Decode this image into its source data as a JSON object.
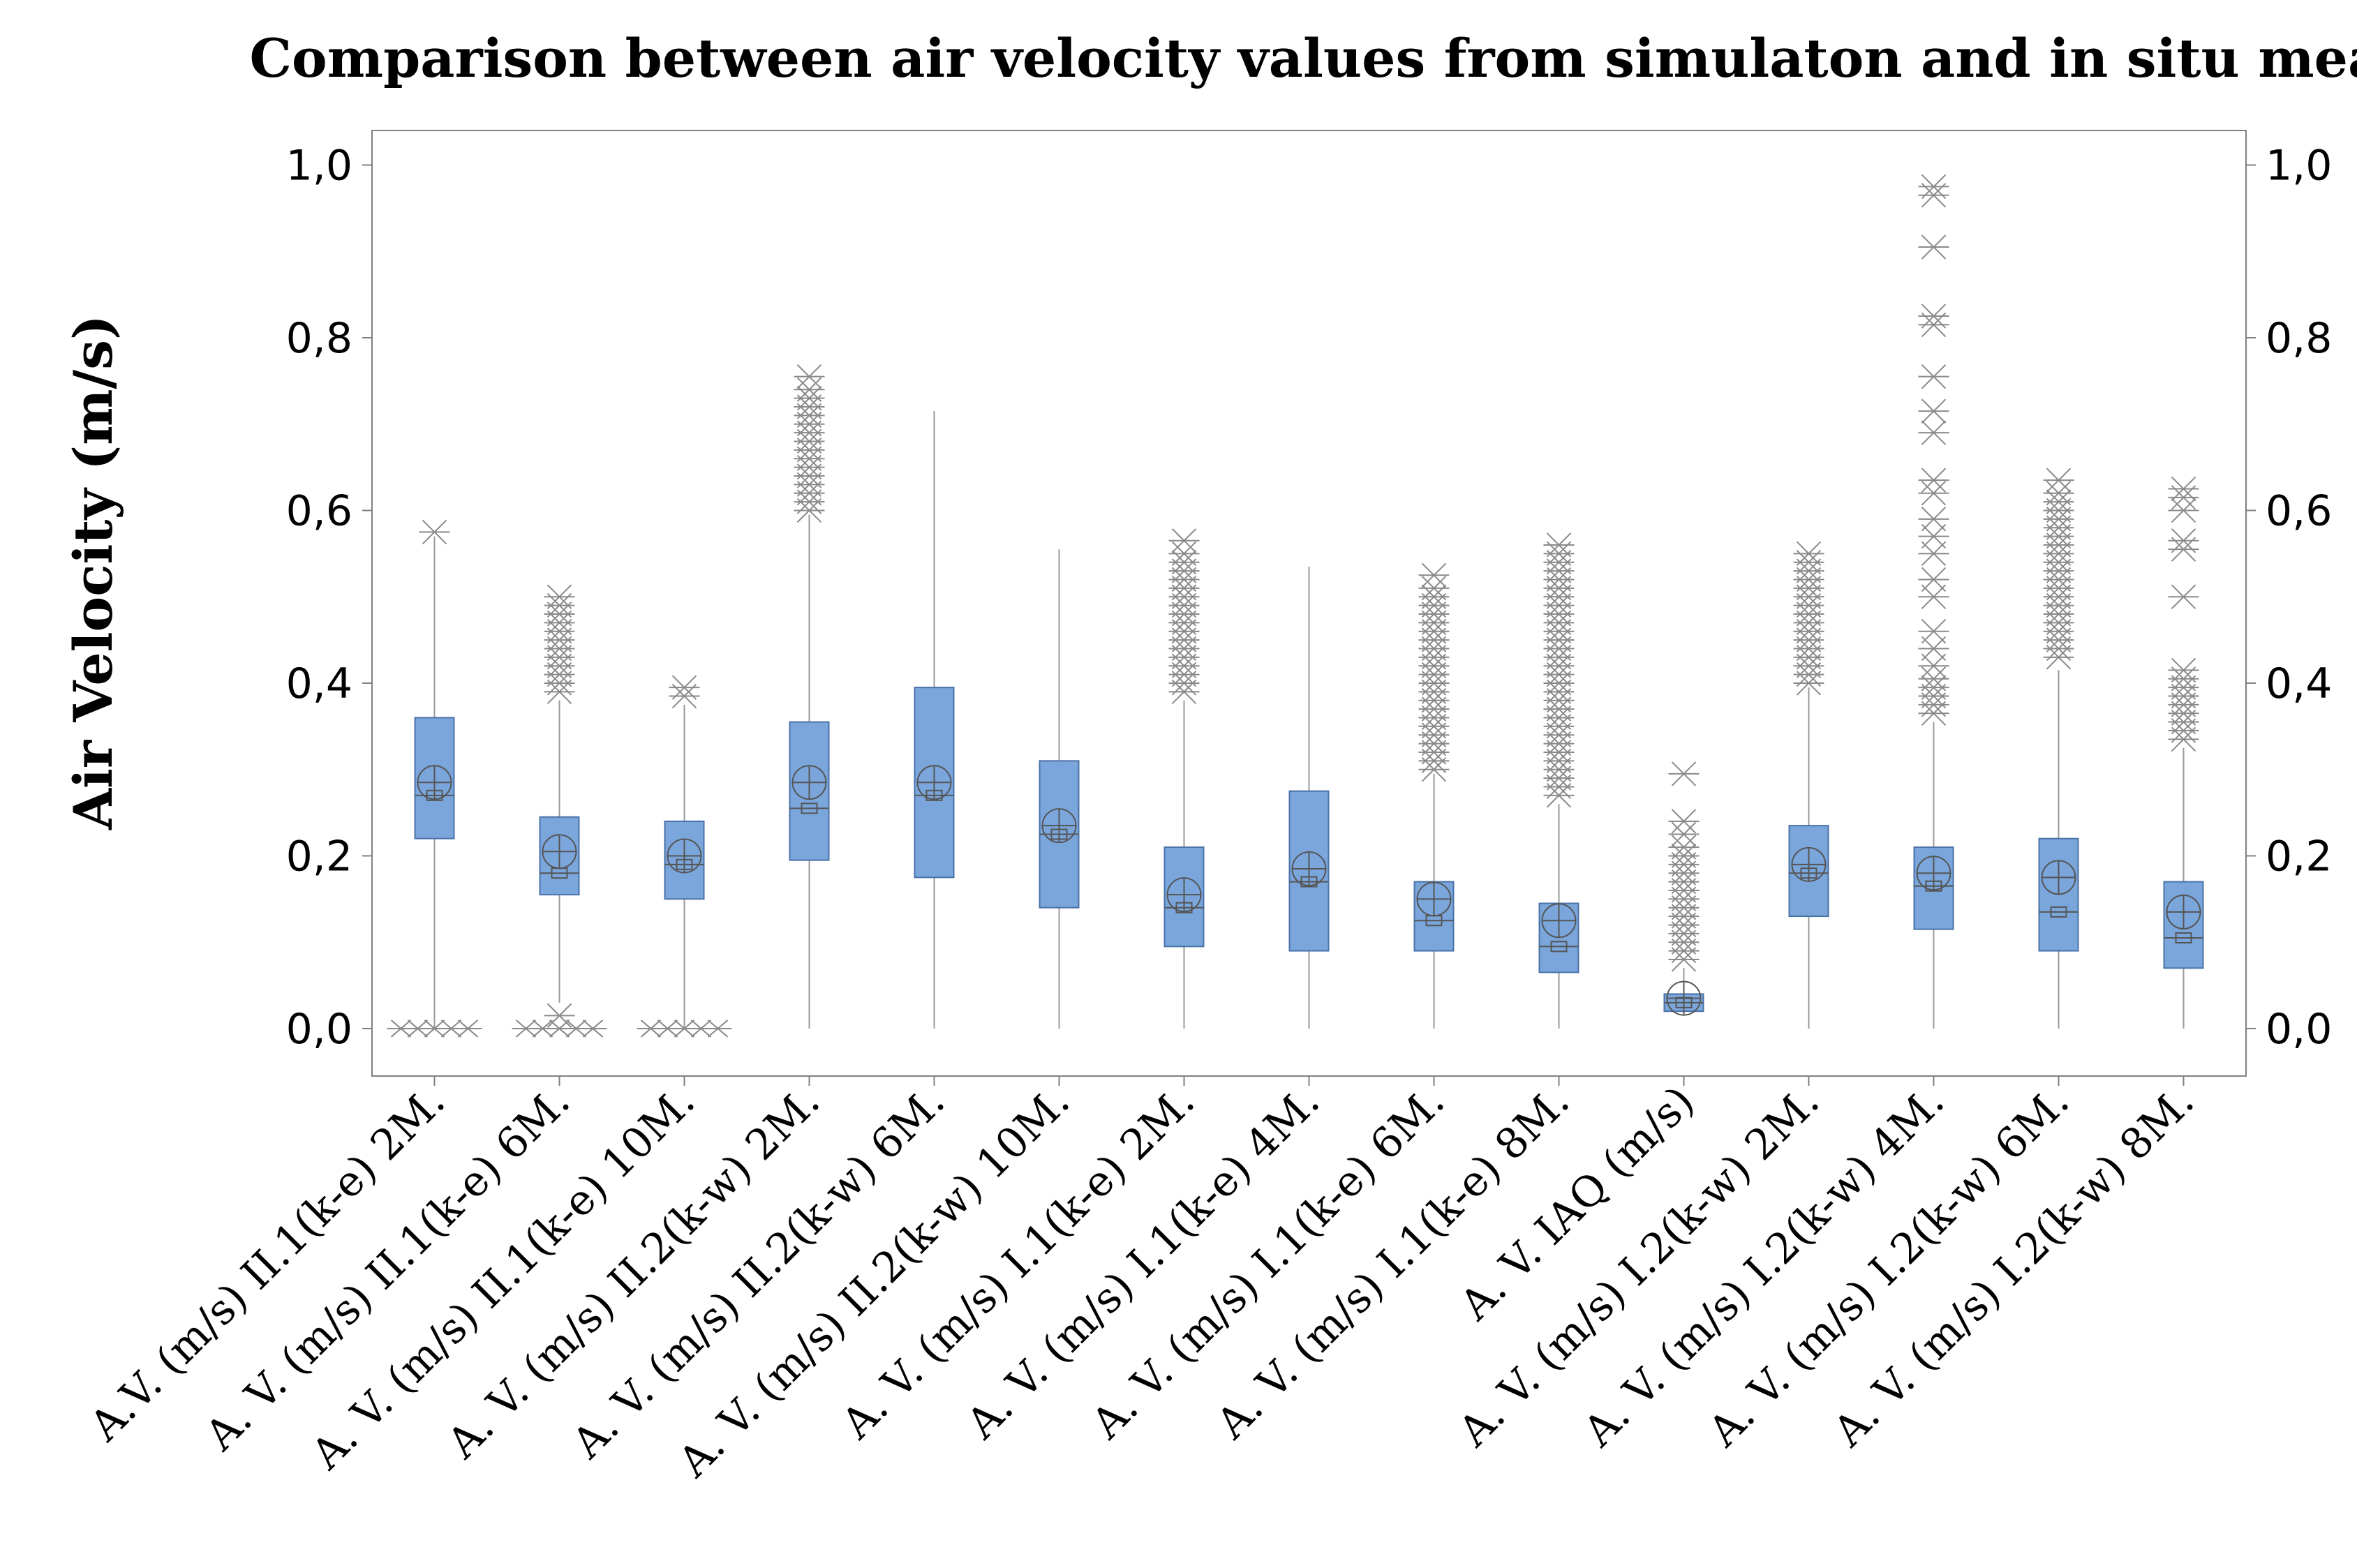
{
  "chart_data": {
    "type": "box",
    "title": "Comparison between air velocity values from simulaton and in situ measures",
    "ylabel": "Air Velocity  (m/s)",
    "xlabel": "",
    "ylim": [
      -0.055,
      1.04
    ],
    "yticks": [
      0.0,
      0.2,
      0.4,
      0.6,
      0.8,
      1.0
    ],
    "ytick_labels": [
      "0,0",
      "0,2",
      "0,4",
      "0,6",
      "0,8",
      "1,0"
    ],
    "grid": false,
    "colors": {
      "box_fill": "#7aa6dc",
      "box_stroke": "#4a72a8",
      "line": "#9a9a9a",
      "outlier": "#8a8a8a",
      "frame": "#808080"
    },
    "categories": [
      "A.V. (m/s) II.1(k-e) 2M.",
      "A. V. (m/s) II.1(k-e) 6M.",
      "A. V. (m/s) II.1(k-e) 10M.",
      "A. V. (m/s) II.2(k-w) 2M.",
      "A. V. (m/s) II.2(k-w) 6M.",
      "A. V. (m/s) II.2(k-w) 10M.",
      "A. V. (m/s) I.1(k-e) 2M.",
      "A. V. (m/s) I.1(k-e) 4M.",
      "A. V. (m/s) I.1(k-e) 6M.",
      "A. V. (m/s) I.1(k-e) 8M.",
      "A. V. IAQ (m/s)",
      "A. V. (m/s) I.2(k-w) 2M.",
      "A. V. (m/s) I.2(k-w) 4M.",
      "A. V. (m/s) I.2(k-w) 6M.",
      "A. V. (m/s) I.2(k-w) 8M."
    ],
    "boxes": [
      {
        "q1": 0.22,
        "median": 0.27,
        "q3": 0.36,
        "mean": 0.285,
        "whisker_low": 0.0,
        "whisker_high": 0.57,
        "outliers": [
          0.575,
          0.0
        ]
      },
      {
        "q1": 0.155,
        "median": 0.18,
        "q3": 0.245,
        "mean": 0.205,
        "whisker_low": 0.03,
        "whisker_high": 0.38,
        "outliers": [
          0.39,
          0.4,
          0.41,
          0.42,
          0.43,
          0.44,
          0.45,
          0.46,
          0.47,
          0.48,
          0.49,
          0.5,
          0.015,
          0.0
        ]
      },
      {
        "q1": 0.15,
        "median": 0.19,
        "q3": 0.24,
        "mean": 0.2,
        "whisker_low": 0.0,
        "whisker_high": 0.375,
        "outliers": [
          0.385,
          0.395,
          0.0
        ]
      },
      {
        "q1": 0.195,
        "median": 0.255,
        "q3": 0.355,
        "mean": 0.285,
        "whisker_low": 0.0,
        "whisker_high": 0.595,
        "outliers": [
          0.6,
          0.61,
          0.62,
          0.63,
          0.64,
          0.65,
          0.66,
          0.67,
          0.68,
          0.69,
          0.7,
          0.71,
          0.72,
          0.73,
          0.74,
          0.755
        ]
      },
      {
        "q1": 0.175,
        "median": 0.27,
        "q3": 0.395,
        "mean": 0.285,
        "whisker_low": 0.0,
        "whisker_high": 0.715,
        "outliers": []
      },
      {
        "q1": 0.14,
        "median": 0.225,
        "q3": 0.31,
        "mean": 0.235,
        "whisker_low": 0.0,
        "whisker_high": 0.555,
        "outliers": []
      },
      {
        "q1": 0.095,
        "median": 0.14,
        "q3": 0.21,
        "mean": 0.155,
        "whisker_low": 0.0,
        "whisker_high": 0.38,
        "outliers": [
          0.39,
          0.4,
          0.41,
          0.42,
          0.43,
          0.44,
          0.45,
          0.46,
          0.47,
          0.48,
          0.49,
          0.5,
          0.51,
          0.52,
          0.53,
          0.54,
          0.55,
          0.565
        ]
      },
      {
        "q1": 0.09,
        "median": 0.17,
        "q3": 0.275,
        "mean": 0.185,
        "whisker_low": 0.0,
        "whisker_high": 0.535,
        "outliers": []
      },
      {
        "q1": 0.09,
        "median": 0.125,
        "q3": 0.17,
        "mean": 0.15,
        "whisker_low": 0.0,
        "whisker_high": 0.295,
        "outliers": [
          0.3,
          0.31,
          0.32,
          0.33,
          0.34,
          0.35,
          0.36,
          0.37,
          0.38,
          0.39,
          0.4,
          0.41,
          0.42,
          0.43,
          0.44,
          0.45,
          0.46,
          0.47,
          0.48,
          0.49,
          0.5,
          0.51,
          0.525
        ]
      },
      {
        "q1": 0.065,
        "median": 0.095,
        "q3": 0.145,
        "mean": 0.125,
        "whisker_low": 0.0,
        "whisker_high": 0.26,
        "outliers": [
          0.27,
          0.28,
          0.29,
          0.3,
          0.31,
          0.32,
          0.33,
          0.34,
          0.35,
          0.36,
          0.37,
          0.38,
          0.39,
          0.4,
          0.41,
          0.42,
          0.43,
          0.44,
          0.45,
          0.46,
          0.47,
          0.48,
          0.49,
          0.5,
          0.51,
          0.52,
          0.53,
          0.54,
          0.55,
          0.56
        ]
      },
      {
        "q1": 0.02,
        "median": 0.03,
        "q3": 0.04,
        "mean": 0.035,
        "whisker_low": 0.02,
        "whisker_high": 0.07,
        "outliers": [
          0.08,
          0.09,
          0.1,
          0.11,
          0.12,
          0.13,
          0.14,
          0.15,
          0.16,
          0.17,
          0.18,
          0.19,
          0.2,
          0.21,
          0.225,
          0.24,
          0.295
        ]
      },
      {
        "q1": 0.13,
        "median": 0.18,
        "q3": 0.235,
        "mean": 0.19,
        "whisker_low": 0.0,
        "whisker_high": 0.395,
        "outliers": [
          0.4,
          0.41,
          0.42,
          0.43,
          0.44,
          0.45,
          0.46,
          0.47,
          0.48,
          0.49,
          0.5,
          0.51,
          0.52,
          0.53,
          0.54,
          0.55
        ]
      },
      {
        "q1": 0.115,
        "median": 0.165,
        "q3": 0.21,
        "mean": 0.18,
        "whisker_low": 0.0,
        "whisker_high": 0.355,
        "outliers": [
          0.365,
          0.375,
          0.385,
          0.395,
          0.405,
          0.42,
          0.44,
          0.46,
          0.5,
          0.52,
          0.55,
          0.57,
          0.59,
          0.62,
          0.635,
          0.69,
          0.715,
          0.755,
          0.815,
          0.825,
          0.905,
          0.965,
          0.975
        ]
      },
      {
        "q1": 0.09,
        "median": 0.135,
        "q3": 0.22,
        "mean": 0.175,
        "whisker_low": 0.0,
        "whisker_high": 0.415,
        "outliers": [
          0.43,
          0.44,
          0.45,
          0.46,
          0.47,
          0.48,
          0.49,
          0.5,
          0.51,
          0.52,
          0.53,
          0.54,
          0.55,
          0.56,
          0.57,
          0.58,
          0.59,
          0.6,
          0.61,
          0.62,
          0.635
        ]
      },
      {
        "q1": 0.07,
        "median": 0.105,
        "q3": 0.17,
        "mean": 0.135,
        "whisker_low": 0.0,
        "whisker_high": 0.325,
        "outliers": [
          0.335,
          0.345,
          0.355,
          0.365,
          0.375,
          0.385,
          0.395,
          0.405,
          0.415,
          0.5,
          0.555,
          0.565,
          0.6,
          0.615,
          0.625
        ]
      }
    ]
  }
}
